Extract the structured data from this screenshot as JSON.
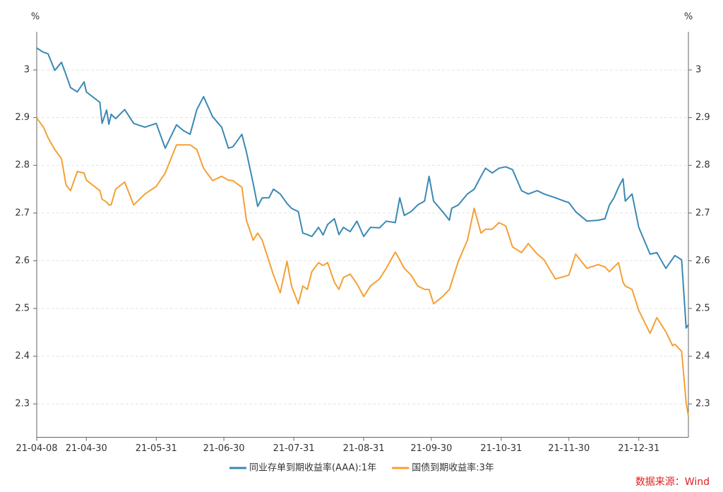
{
  "chart_data": {
    "type": "line",
    "y_unit": "%",
    "y2_unit": "%",
    "x": [
      "21-04-08",
      "21-04-11",
      "21-04-13",
      "21-04-16",
      "21-04-19",
      "21-04-21",
      "21-04-23",
      "21-04-26",
      "21-04-29",
      "21-04-30",
      "21-05-06",
      "21-05-07",
      "21-05-09",
      "21-05-10",
      "21-05-11",
      "21-05-13",
      "21-05-17",
      "21-05-21",
      "21-05-26",
      "21-05-31",
      "21-06-04",
      "21-06-09",
      "21-06-12",
      "21-06-15",
      "21-06-18",
      "21-06-21",
      "21-06-25",
      "21-06-29",
      "21-07-02",
      "21-07-04",
      "21-07-08",
      "21-07-10",
      "21-07-13",
      "21-07-15",
      "21-07-17",
      "21-07-20",
      "21-07-22",
      "21-07-25",
      "21-07-28",
      "21-07-30",
      "21-08-02",
      "21-08-04",
      "21-08-06",
      "21-08-08",
      "21-08-11",
      "21-08-13",
      "21-08-15",
      "21-08-18",
      "21-08-20",
      "21-08-22",
      "21-08-25",
      "21-08-28",
      "21-08-31",
      "21-09-03",
      "21-09-07",
      "21-09-10",
      "21-09-14",
      "21-09-16",
      "21-09-18",
      "21-09-21",
      "21-09-24",
      "21-09-27",
      "21-09-29",
      "21-10-01",
      "21-10-05",
      "21-10-08",
      "21-10-09",
      "21-10-12",
      "21-10-16",
      "21-10-19",
      "21-10-22",
      "21-10-24",
      "21-10-27",
      "21-10-30",
      "21-11-02",
      "21-11-05",
      "21-11-09",
      "21-11-12",
      "21-11-16",
      "21-11-19",
      "21-11-24",
      "21-11-28",
      "21-11-30",
      "21-12-03",
      "21-12-08",
      "21-12-13",
      "21-12-16",
      "21-12-18",
      "21-12-20",
      "21-12-22",
      "21-12-24",
      "21-12-25",
      "21-12-28",
      "21-12-31",
      "22-01-05",
      "22-01-08",
      "22-01-12",
      "22-01-15",
      "22-01-16",
      "22-01-19",
      "22-01-21",
      "22-01-22"
    ],
    "series": [
      {
        "name": "同业存单到期收益率(AAA):1年",
        "color": "#3a89b4",
        "values": [
          3.046,
          3.037,
          3.034,
          2.999,
          3.016,
          2.99,
          2.963,
          2.954,
          2.975,
          2.954,
          2.932,
          2.888,
          2.916,
          2.886,
          2.907,
          2.898,
          2.917,
          2.888,
          2.88,
          2.888,
          2.836,
          2.885,
          2.873,
          2.865,
          2.917,
          2.944,
          2.902,
          2.88,
          2.836,
          2.839,
          2.865,
          2.828,
          2.762,
          2.714,
          2.732,
          2.732,
          2.75,
          2.74,
          2.72,
          2.71,
          2.703,
          2.658,
          2.655,
          2.651,
          2.67,
          2.654,
          2.676,
          2.688,
          2.655,
          2.67,
          2.661,
          2.683,
          2.651,
          2.67,
          2.669,
          2.683,
          2.68,
          2.732,
          2.695,
          2.703,
          2.717,
          2.725,
          2.777,
          2.725,
          2.703,
          2.685,
          2.71,
          2.717,
          2.74,
          2.75,
          2.777,
          2.794,
          2.784,
          2.794,
          2.797,
          2.791,
          2.747,
          2.74,
          2.747,
          2.74,
          2.732,
          2.725,
          2.722,
          2.703,
          2.683,
          2.685,
          2.688,
          2.717,
          2.732,
          2.754,
          2.772,
          2.725,
          2.74,
          2.67,
          2.614,
          2.617,
          2.584,
          2.604,
          2.611,
          2.602,
          2.459,
          2.466
        ]
      },
      {
        "name": "国债到期收益率:3年",
        "color": "#f5a034",
        "values": [
          2.899,
          2.88,
          2.858,
          2.833,
          2.814,
          2.759,
          2.747,
          2.787,
          2.784,
          2.769,
          2.747,
          2.729,
          2.723,
          2.717,
          2.717,
          2.75,
          2.765,
          2.717,
          2.74,
          2.756,
          2.784,
          2.843,
          2.843,
          2.843,
          2.833,
          2.794,
          2.768,
          2.777,
          2.769,
          2.768,
          2.754,
          2.685,
          2.643,
          2.658,
          2.643,
          2.599,
          2.57,
          2.533,
          2.599,
          2.547,
          2.51,
          2.547,
          2.54,
          2.577,
          2.596,
          2.59,
          2.596,
          2.555,
          2.54,
          2.565,
          2.572,
          2.552,
          2.525,
          2.547,
          2.562,
          2.584,
          2.618,
          2.602,
          2.584,
          2.57,
          2.547,
          2.54,
          2.54,
          2.51,
          2.525,
          2.54,
          2.555,
          2.599,
          2.643,
          2.71,
          2.658,
          2.666,
          2.666,
          2.68,
          2.673,
          2.629,
          2.617,
          2.636,
          2.614,
          2.602,
          2.562,
          2.567,
          2.57,
          2.614,
          2.584,
          2.592,
          2.587,
          2.577,
          2.587,
          2.596,
          2.555,
          2.547,
          2.54,
          2.496,
          2.448,
          2.481,
          2.451,
          2.422,
          2.425,
          2.41,
          2.303,
          2.274
        ]
      }
    ],
    "xlim": [
      "21-04-08",
      "22-01-22"
    ],
    "xticks": [
      "21-04-08",
      "21-04-30",
      "21-05-31",
      "21-06-30",
      "21-07-31",
      "21-08-31",
      "21-09-30",
      "21-10-31",
      "21-11-30",
      "21-12-31"
    ],
    "ylim": [
      2.23,
      3.08
    ],
    "yticks": [
      2.3,
      2.4,
      2.5,
      2.6,
      2.7,
      2.8,
      2.9,
      3
    ],
    "y2lim": [
      2.23,
      3.08
    ],
    "y2ticks": [
      2.3,
      2.4,
      2.5,
      2.6,
      2.7,
      2.8,
      2.9,
      3
    ],
    "grid": true,
    "legend": "bottom",
    "source": "数据来源：Wind"
  }
}
